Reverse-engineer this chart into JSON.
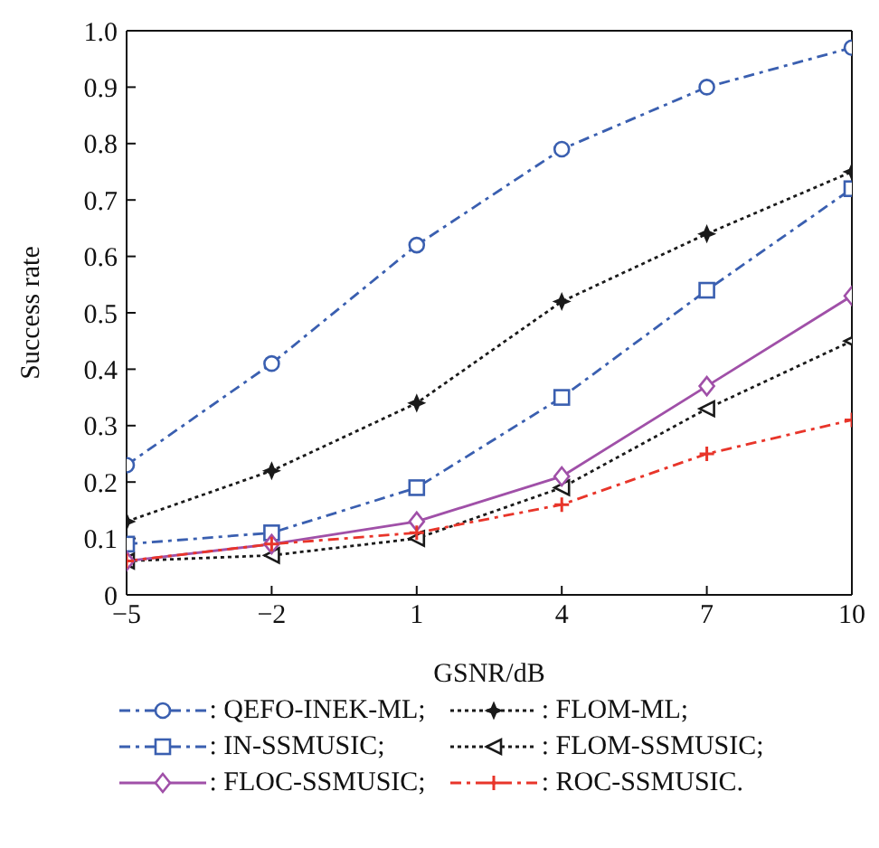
{
  "chart_data": {
    "type": "line",
    "xlabel": "GSNR/dB",
    "ylabel": "Success rate",
    "x": [
      -5,
      -2,
      1,
      4,
      7,
      10
    ],
    "xlim": [
      -5,
      10
    ],
    "xticks": [
      {
        "value": -5,
        "label": "−5"
      },
      {
        "value": -2,
        "label": "−2"
      },
      1,
      4,
      7,
      10
    ],
    "ylim": [
      0,
      1
    ],
    "yticks": [
      0,
      0.1,
      0.2,
      0.3,
      0.4,
      0.5,
      0.6,
      0.7,
      0.8,
      0.9,
      {
        "value": 1,
        "label": "1.0"
      }
    ],
    "grid": false,
    "legend": "bottom",
    "series": [
      {
        "name": ": QEFO-INEK-ML;",
        "color": "#3a5fb0",
        "marker": "circle",
        "line_style": "dashed",
        "values": [
          0.23,
          0.41,
          0.62,
          0.79,
          0.9,
          0.97
        ]
      },
      {
        "name": ": FLOM-ML;",
        "color": "#1a1a1a",
        "marker": "star",
        "line_style": "dotted",
        "values": [
          0.13,
          0.22,
          0.34,
          0.52,
          0.64,
          0.75
        ]
      },
      {
        "name": ": IN-SSMUSIC;",
        "color": "#3a5fb0",
        "marker": "square",
        "line_style": "dashed",
        "values": [
          0.09,
          0.11,
          0.19,
          0.35,
          0.54,
          0.72
        ]
      },
      {
        "name": ": FLOM-SSMUSIC;",
        "color": "#1a1a1a",
        "marker": "triangle",
        "line_style": "dotted",
        "values": [
          0.06,
          0.07,
          0.1,
          0.19,
          0.33,
          0.45
        ]
      },
      {
        "name": ": FLOC-SSMUSIC;",
        "color": "#a050a8",
        "marker": "diamond",
        "line_style": "solid",
        "values": [
          0.06,
          0.09,
          0.13,
          0.21,
          0.37,
          0.53
        ]
      },
      {
        "name": ": ROC-SSMUSIC.",
        "color": "#e8352a",
        "marker": "cross",
        "line_style": "dashed",
        "values": [
          0.06,
          0.09,
          0.11,
          0.16,
          0.25,
          0.31
        ]
      }
    ]
  }
}
